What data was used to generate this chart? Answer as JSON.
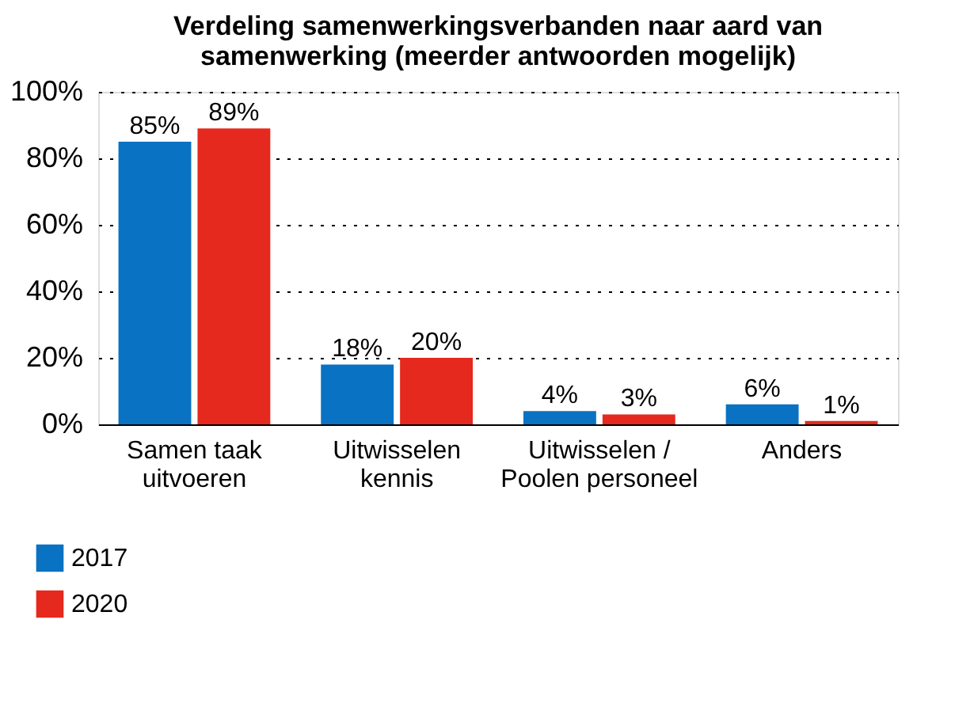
{
  "chart_data": {
    "type": "bar",
    "title": "Verdeling samenwerkingsverbanden naar aard van\nsamenwerking (meerder antwoorden mogelijk)",
    "categories": [
      "Samen taak\nuitvoeren",
      "Uitwisselen\nkennis",
      "Uitwisselen /\nPoolen personeel",
      "Anders"
    ],
    "series": [
      {
        "name": "2017",
        "color": "#0a72c2",
        "values": [
          85,
          18,
          4,
          6
        ],
        "value_labels": [
          "85%",
          "18%",
          "4%",
          "6%"
        ]
      },
      {
        "name": "2020",
        "color": "#e5291e",
        "values": [
          89,
          20,
          3,
          1
        ],
        "value_labels": [
          "89%",
          "20%",
          "3%",
          "1%"
        ]
      }
    ],
    "ylim": [
      0,
      100
    ],
    "yticks": [
      {
        "value": 0,
        "label": "0%"
      },
      {
        "value": 20,
        "label": "20%"
      },
      {
        "value": 40,
        "label": "40%"
      },
      {
        "value": 60,
        "label": "60%"
      },
      {
        "value": 80,
        "label": "80%"
      },
      {
        "value": 100,
        "label": "100%"
      }
    ],
    "grid": "y",
    "legend": "bottom left"
  }
}
